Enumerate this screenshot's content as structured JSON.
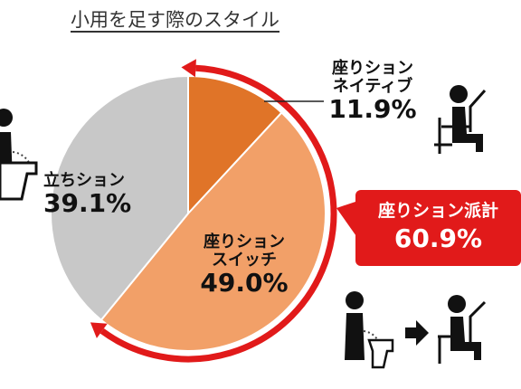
{
  "title": "小用を足す際のスタイル",
  "chart_data": {
    "type": "pie",
    "title": "小用を足す際のスタイル",
    "slices": [
      {
        "label": "座りション\nネイティブ",
        "value": 11.9,
        "value_text": "11.9%",
        "color": "#e07428"
      },
      {
        "label": "座りション\nスイッチ",
        "value": 49.0,
        "value_text": "49.0%",
        "color": "#f2a068"
      },
      {
        "label": "立ちション",
        "value": 39.1,
        "value_text": "39.1%",
        "color": "#c8c8c8"
      }
    ],
    "callout": {
      "label": "座りション派計",
      "value": 60.9,
      "value_text": "60.9%",
      "color": "#e11a1a"
    }
  },
  "icons": [
    "standing-urinating-person-icon",
    "seated-person-icon",
    "arrow-right-icon",
    "toilet-icon"
  ]
}
